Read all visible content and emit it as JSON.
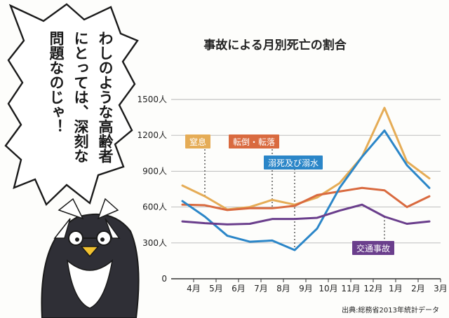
{
  "bubble": {
    "lines": [
      "わしのような高齢者",
      "にとっては、深刻な",
      "問題なのじゃ！"
    ]
  },
  "chart_data": {
    "type": "line",
    "title": "事故による月別死亡の割合",
    "xlabel": "",
    "ylabel": "",
    "categories": [
      "4月",
      "5月",
      "6月",
      "7月",
      "8月",
      "9月",
      "10月",
      "11月",
      "12月",
      "1月",
      "2月",
      "3月"
    ],
    "y_ticks": [
      "0",
      "300人",
      "600人",
      "900人",
      "1200人",
      "1500人"
    ],
    "ylim": [
      0,
      1500
    ],
    "grid": "horizontal",
    "source": "出典:総務省2013年統計データ",
    "series": [
      {
        "name": "窒息",
        "color": "#e5ac56",
        "values": [
          780,
          690,
          580,
          600,
          660,
          620,
          680,
          800,
          1020,
          1430,
          980,
          840
        ]
      },
      {
        "name": "転倒・転落",
        "color": "#d96a3f",
        "values": [
          620,
          615,
          575,
          590,
          590,
          610,
          700,
          730,
          760,
          740,
          600,
          690
        ]
      },
      {
        "name": "溺死及び溺水",
        "color": "#2b86c8",
        "values": [
          650,
          520,
          360,
          310,
          320,
          240,
          420,
          760,
          1020,
          1240,
          950,
          760
        ]
      },
      {
        "name": "交通事故",
        "color": "#6a3e8c",
        "values": [
          480,
          465,
          455,
          460,
          500,
          500,
          510,
          570,
          620,
          520,
          460,
          480
        ]
      }
    ]
  }
}
